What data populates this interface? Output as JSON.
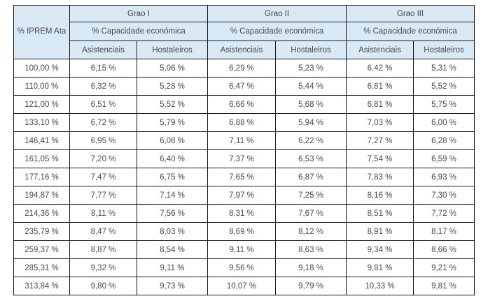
{
  "colors": {
    "header_bg": "#d9e9f6",
    "border": "#1a1a1a",
    "text": "#4a4a4a",
    "page_bg": "#ffffff"
  },
  "table": {
    "corner_header": "% IPREM Ata",
    "groups": [
      {
        "label": "Grao I"
      },
      {
        "label": "Grao II"
      },
      {
        "label": "Grao III"
      }
    ],
    "capacity_header": "% Capacidade económica",
    "subheaders": [
      "Asistenciais",
      "Hostaleiros"
    ],
    "rows": [
      [
        "100,00 %",
        "6,15 %",
        "5,06 %",
        "6,29 %",
        "5,23 %",
        "6,42 %",
        "5,31 %"
      ],
      [
        "110,00 %",
        "6,32 %",
        "5,28 %",
        "6,47 %",
        "5,44 %",
        "6,61 %",
        "5,52 %"
      ],
      [
        "121,00 %",
        "6,51 %",
        "5,52 %",
        "6,66 %",
        "5,68 %",
        "6,81 %",
        "5,75 %"
      ],
      [
        "133,10 %",
        "6,72 %",
        "5,79 %",
        "6,88 %",
        "5,94 %",
        "7,03 %",
        "6,00 %"
      ],
      [
        "146,41 %",
        "6,95 %",
        "6,08 %",
        "7,11 %",
        "6,22 %",
        "7,27 %",
        "6,28 %"
      ],
      [
        "161,05 %",
        "7,20 %",
        "6,40 %",
        "7,37 %",
        "6,53 %",
        "7,54 %",
        "6,59 %"
      ],
      [
        "177,16 %",
        "7,47 %",
        "6,75 %",
        "7,65 %",
        "6,87 %",
        "7,83 %",
        "6,93 %"
      ],
      [
        "194,87 %",
        "7,77 %",
        "7,14 %",
        "7,97 %",
        "7,25 %",
        "8,16 %",
        "7,30 %"
      ],
      [
        "214,36 %",
        "8,11 %",
        "7,56 %",
        "8,31 %",
        "7,67 %",
        "8,51 %",
        "7,72 %"
      ],
      [
        "235,79 %",
        "8,47 %",
        "8,03 %",
        "8,69 %",
        "8,12 %",
        "8,91 %",
        "8,17 %"
      ],
      [
        "259,37 %",
        "8,87 %",
        "8,54 %",
        "9,11 %",
        "8,63 %",
        "9,34 %",
        "8,66 %"
      ],
      [
        "285,31 %",
        "9,32 %",
        "9,11 %",
        "9,56 %",
        "9,18 %",
        "9,81 %",
        "9,21 %"
      ],
      [
        "313,84 %",
        "9,80 %",
        "9,73 %",
        "10,07 %",
        "9,79 %",
        "10,33 %",
        "9,81 %"
      ]
    ]
  }
}
